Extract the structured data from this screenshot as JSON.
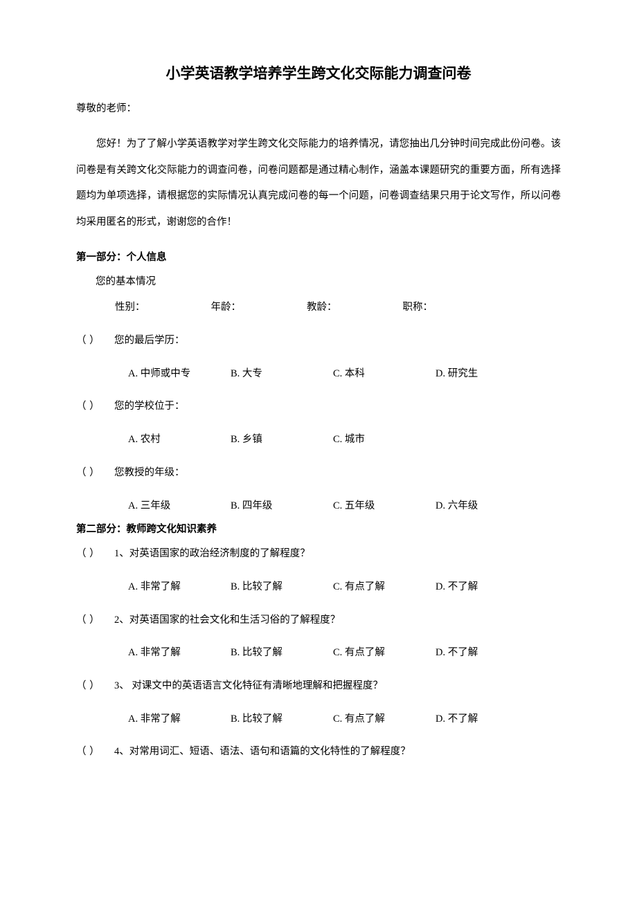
{
  "title": "小学英语教学培养学生跨文化交际能力调查问卷",
  "salutation": "尊敬的老师：",
  "intro": "您好！为了了解小学英语教学对学生跨文化交际能力的培养情况，请您抽出几分钟时间完成此份问卷。该问卷是有关跨文化交际能力的调查问卷，问卷问题都是通过精心制作，涵盖本课题研究的重要方面，所有选择题均为单项选择，请根据您的实际情况认真完成问卷的每一个问题，问卷调查结果只用于论文写作，所以问卷均采用匿名的形式，谢谢您的合作！",
  "section1": {
    "header": "第一部分：个人信息",
    "subheader": "您的基本情况",
    "info_fields": {
      "f1": "性别：",
      "f2": "年龄：",
      "f3": "教龄：",
      "f4": "职称："
    },
    "bracket": "（     ）",
    "q1": {
      "text": "您的最后学历：",
      "a": "A. 中师或中专",
      "b": "B. 大专",
      "c": "C. 本科",
      "d": "D. 研究生"
    },
    "q2": {
      "text": "您的学校位于：",
      "a": "A. 农村",
      "b": "B. 乡镇",
      "c": "C. 城市"
    },
    "q3": {
      "text": "您教授的年级：",
      "a": "A. 三年级",
      "b": "B. 四年级",
      "c": "C. 五年级",
      "d": "D. 六年级"
    }
  },
  "section2": {
    "header": "第二部分：教师跨文化知识素养",
    "q1": {
      "text": "1、对英语国家的政治经济制度的了解程度？",
      "a": "A. 非常了解",
      "b": "B. 比较了解",
      "c": "C. 有点了解",
      "d": "D. 不了解"
    },
    "q2": {
      "text": "2、对英语国家的社会文化和生活习俗的了解程度？",
      "a": "A. 非常了解",
      "b": "B. 比较了解",
      "c": "C. 有点了解",
      "d": "D. 不了解"
    },
    "q3": {
      "text": "3、 对课文中的英语语言文化特征有清晰地理解和把握程度？",
      "a": "A. 非常了解",
      "b": "B. 比较了解",
      "c": "C. 有点了解",
      "d": "D. 不了解"
    },
    "q4": {
      "text": "4、对常用词汇、短语、语法、语句和语篇的文化特性的了解程度？"
    }
  }
}
